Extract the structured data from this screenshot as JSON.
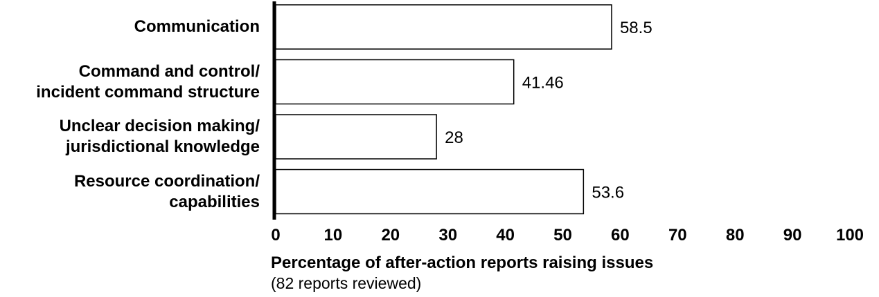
{
  "chart_data": {
    "type": "bar",
    "orientation": "horizontal",
    "title": "",
    "categories": [
      "Communication",
      "Command and control/\nincident command structure",
      "Unclear decision making/\njurisdictional knowledge",
      "Resource coordination/\ncapabilities"
    ],
    "values": [
      58.5,
      41.46,
      28,
      53.6
    ],
    "data_labels": [
      "58.5",
      "41.46",
      "28",
      "53.6"
    ],
    "xlabel": "Percentage of after-action reports raising issues",
    "xlabel_note": "(82 reports reviewed)",
    "ylabel": "",
    "xlim": [
      0,
      100
    ],
    "xticks": [
      0,
      10,
      20,
      30,
      40,
      50,
      60,
      70,
      80,
      90,
      100
    ],
    "grid": false,
    "legend": "none",
    "colors": {
      "bar_fill": "#ffffff",
      "bar_stroke": "#000000",
      "axis": "#000000"
    }
  }
}
